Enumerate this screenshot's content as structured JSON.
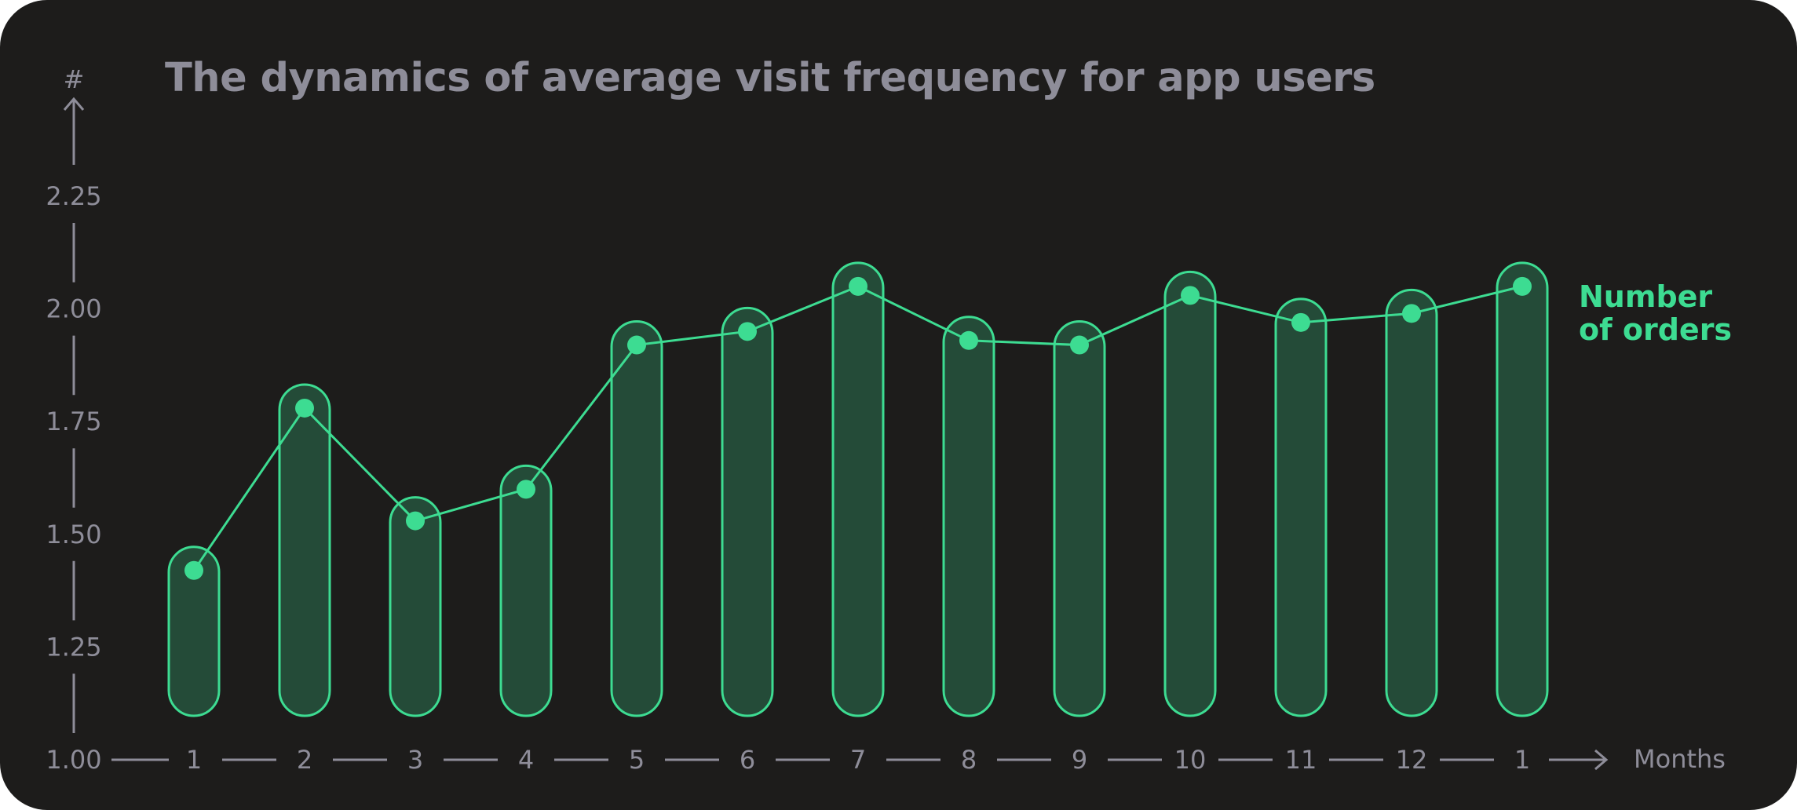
{
  "chart_data": {
    "type": "bar",
    "title": "The dynamics of average visit frequency for app users",
    "ylabel": "#",
    "xlabel": "Months",
    "ylim": [
      1.0,
      2.25
    ],
    "yticks": [
      "1.00",
      "1.25",
      "1.50",
      "1.75",
      "2.00",
      "2.25"
    ],
    "categories": [
      "1",
      "2",
      "3",
      "4",
      "5",
      "6",
      "7",
      "8",
      "9",
      "10",
      "11",
      "12",
      "1"
    ],
    "series": [
      {
        "name": "Number of orders",
        "values": [
          1.42,
          1.78,
          1.53,
          1.6,
          1.92,
          1.95,
          2.05,
          1.93,
          1.92,
          2.03,
          1.97,
          1.99,
          2.05
        ]
      }
    ],
    "grid": false,
    "legend": "right",
    "colors": {
      "accent": "#3ddc92",
      "bar_fill": "#244b38",
      "text": "#8e8d99",
      "background": "#1d1c1b"
    }
  }
}
